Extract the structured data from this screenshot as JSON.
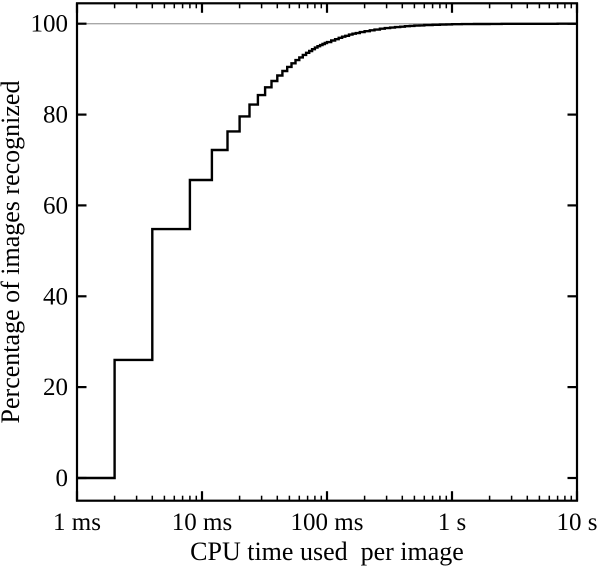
{
  "figure": {
    "background_color": "#ffffff",
    "curve_color": "#000000",
    "frame_color": "#000000",
    "reference_line_color": "#a8a8a8"
  },
  "chart_data": {
    "type": "line",
    "subtype": "step-cumulative-distribution",
    "title": "",
    "xlabel": "CPU time used  per image",
    "ylabel": "Percentage of images recognized",
    "x_scale": "log",
    "x_unit": "ms",
    "xlim_ms": [
      1,
      10000
    ],
    "ylim": [
      -5,
      104.5
    ],
    "grid": "off",
    "legend": "none",
    "x_ticks": [
      {
        "t_ms": 1,
        "label": "1 ms"
      },
      {
        "t_ms": 10,
        "label": "10 ms"
      },
      {
        "t_ms": 100,
        "label": "100 ms"
      },
      {
        "t_ms": 1000,
        "label": "1 s"
      },
      {
        "t_ms": 10000,
        "label": "10 s"
      }
    ],
    "x_minor_ticks_ms": [
      2,
      3,
      4,
      5,
      6,
      7,
      8,
      9,
      20,
      30,
      40,
      50,
      60,
      70,
      80,
      90,
      200,
      300,
      400,
      500,
      600,
      700,
      800,
      900,
      2000,
      3000,
      4000,
      5000,
      6000,
      7000,
      8000,
      9000
    ],
    "y_ticks": [
      {
        "value": 0,
        "label": "0"
      },
      {
        "value": 20,
        "label": "20"
      },
      {
        "value": 40,
        "label": "40"
      },
      {
        "value": 60,
        "label": "60"
      },
      {
        "value": 80,
        "label": "80"
      },
      {
        "value": 100,
        "label": "100"
      }
    ],
    "reference_line": {
      "y": 100,
      "color": "#a8a8a8"
    },
    "series": [
      {
        "name": "cumulative_percentage_recognized",
        "color": "#000000",
        "style": "step-after",
        "points": [
          [
            1,
            0
          ],
          [
            2,
            26
          ],
          [
            4,
            54.8
          ],
          [
            8,
            65.6
          ],
          [
            12,
            72.2
          ],
          [
            16,
            76.3
          ],
          [
            20,
            79.6
          ],
          [
            24,
            82.2
          ],
          [
            28,
            84.3
          ],
          [
            32,
            86
          ],
          [
            36,
            87.4
          ],
          [
            40,
            88.6
          ],
          [
            44,
            89.6
          ],
          [
            48,
            90.5
          ],
          [
            52,
            91.3
          ],
          [
            56,
            92
          ],
          [
            60,
            92.6
          ],
          [
            64,
            93.15
          ],
          [
            68,
            93.6
          ],
          [
            72,
            94
          ],
          [
            76,
            94.4
          ],
          [
            80,
            94.75
          ],
          [
            84,
            95.05
          ],
          [
            88,
            95.3
          ],
          [
            92,
            95.55
          ],
          [
            96,
            95.75
          ],
          [
            100,
            95.95
          ],
          [
            108,
            96.3
          ],
          [
            116,
            96.6
          ],
          [
            124,
            96.9
          ],
          [
            132,
            97.15
          ],
          [
            140,
            97.35
          ],
          [
            150,
            97.6
          ],
          [
            160,
            97.8
          ],
          [
            170,
            97.95
          ],
          [
            183,
            98.15
          ],
          [
            200,
            98.35
          ],
          [
            220,
            98.55
          ],
          [
            240,
            98.7
          ],
          [
            265,
            98.9
          ],
          [
            290,
            99.05
          ],
          [
            320,
            99.15
          ],
          [
            350,
            99.25
          ],
          [
            385,
            99.35
          ],
          [
            420,
            99.45
          ],
          [
            460,
            99.52
          ],
          [
            500,
            99.58
          ],
          [
            550,
            99.64
          ],
          [
            600,
            99.7
          ],
          [
            700,
            99.77
          ],
          [
            800,
            99.82
          ],
          [
            900,
            99.86
          ],
          [
            1000,
            99.89
          ],
          [
            1200,
            99.92
          ],
          [
            1500,
            99.95
          ],
          [
            2000,
            99.97
          ],
          [
            2500,
            99.98
          ],
          [
            3000,
            99.985
          ],
          [
            4000,
            99.99
          ],
          [
            5000,
            99.995
          ],
          [
            7000,
            100
          ],
          [
            10000,
            100
          ]
        ]
      }
    ]
  }
}
